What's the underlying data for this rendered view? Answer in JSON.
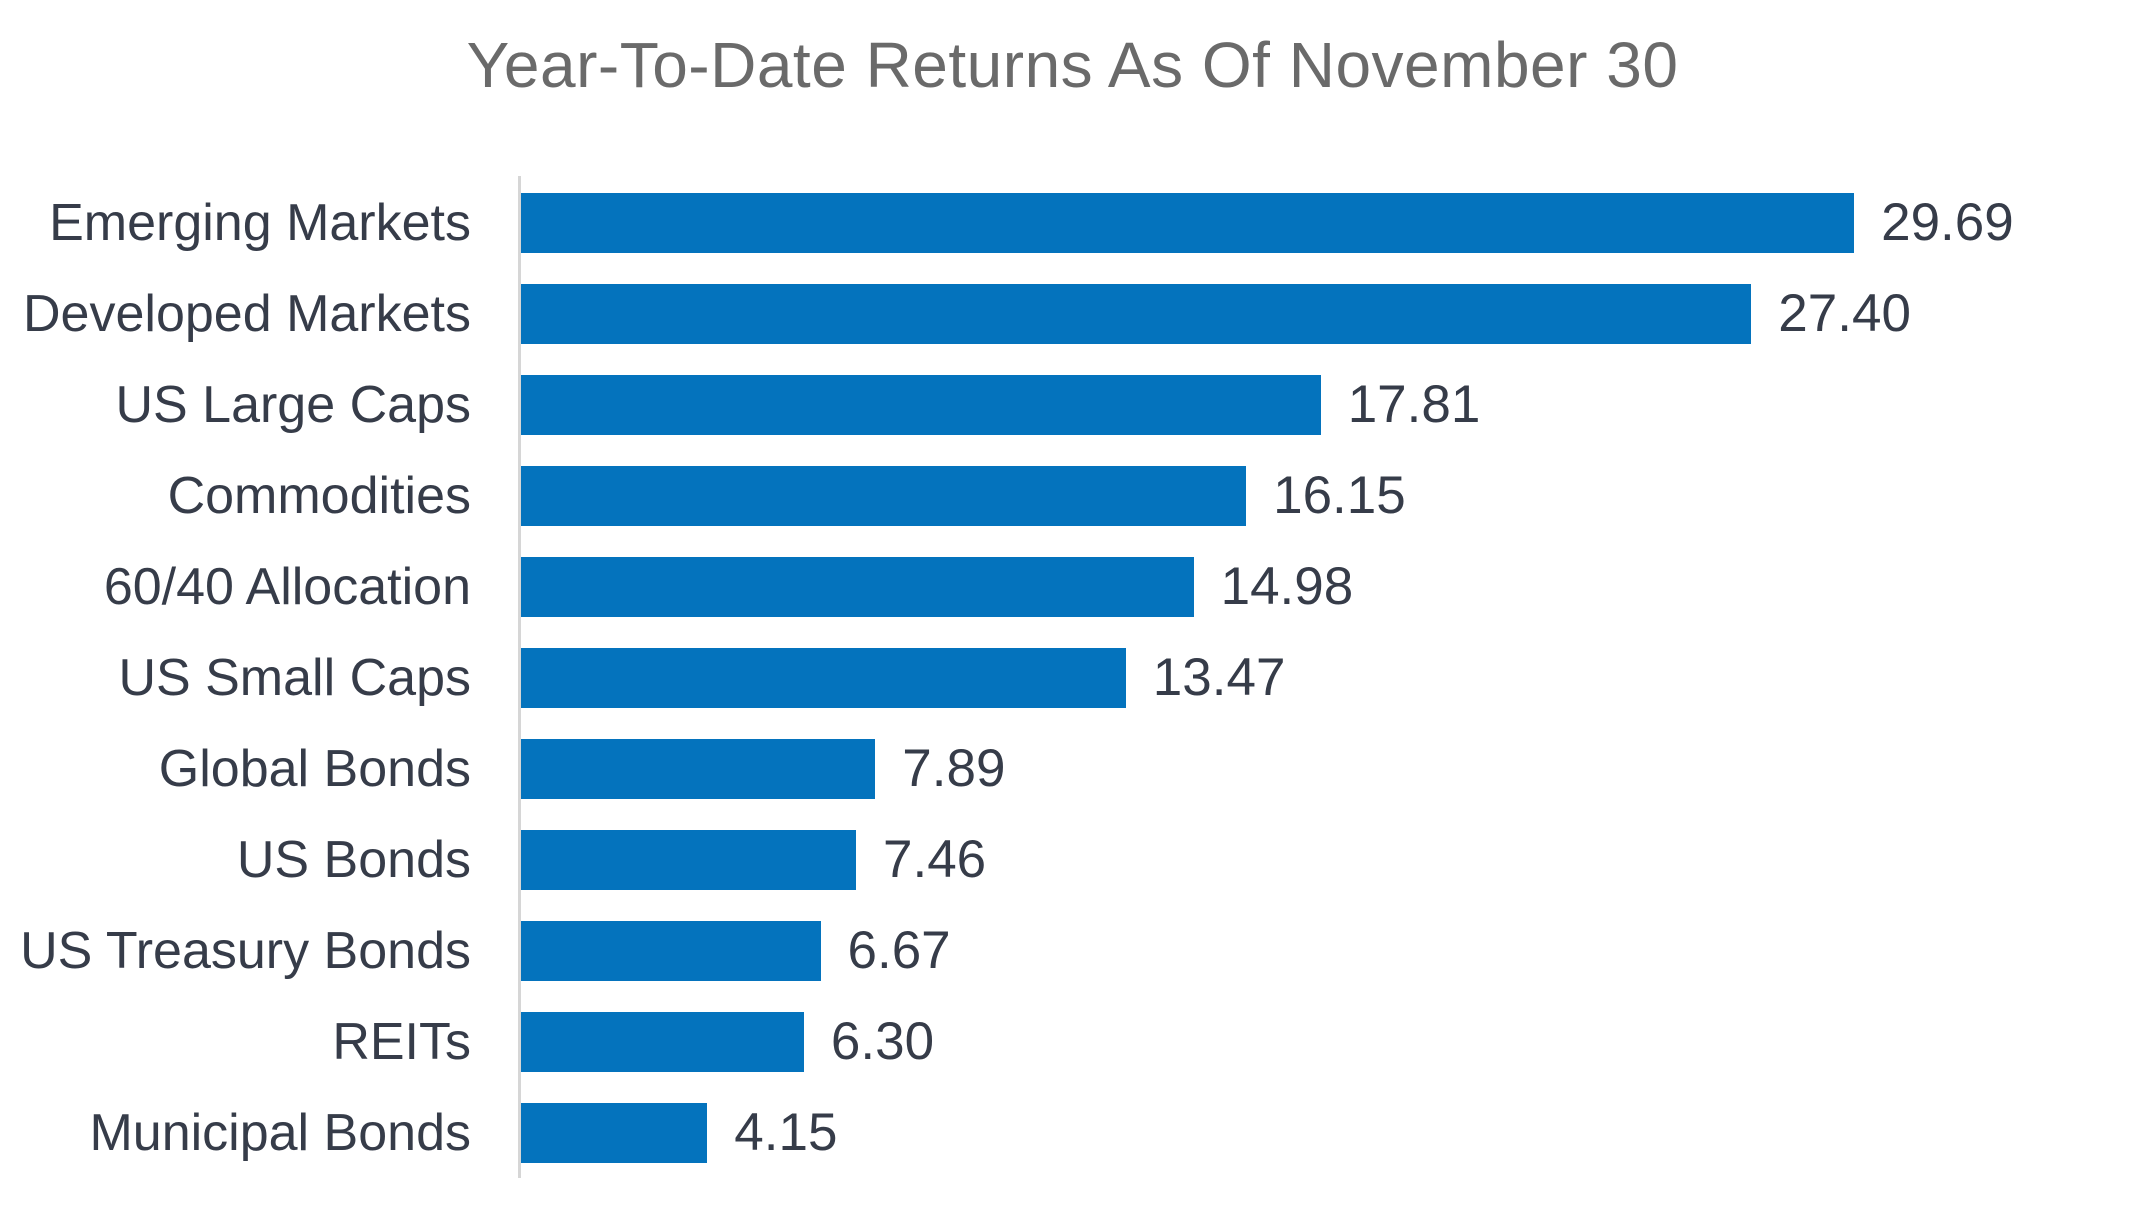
{
  "chart_data": {
    "type": "bar",
    "orientation": "horizontal",
    "title": "Year-To-Date Returns As Of November 30",
    "categories": [
      "Emerging Markets",
      "Developed Markets",
      "US Large Caps",
      "Commodities",
      "60/40 Allocation",
      "US Small Caps",
      "Global Bonds",
      "US Bonds",
      "US Treasury Bonds",
      "REITs",
      "Municipal Bonds"
    ],
    "values": [
      29.69,
      27.4,
      17.81,
      16.15,
      14.98,
      13.47,
      7.89,
      7.46,
      6.67,
      6.3,
      4.15
    ],
    "value_labels": [
      "29.69",
      "27.40",
      "17.81",
      "16.15",
      "14.98",
      "13.47",
      "7.89",
      "7.46",
      "6.67",
      "6.30",
      "4.15"
    ],
    "xlabel": "",
    "ylabel": "",
    "xlim": [
      0,
      36
    ],
    "grid": false,
    "legend": false,
    "value_label_position": "end-of-bar",
    "bar_color": "#0473BD",
    "label_color": "#363C49",
    "title_color": "#6A6A6A",
    "axis_line_color": "#D6D6D6",
    "background_color": "#FFFFFF"
  }
}
